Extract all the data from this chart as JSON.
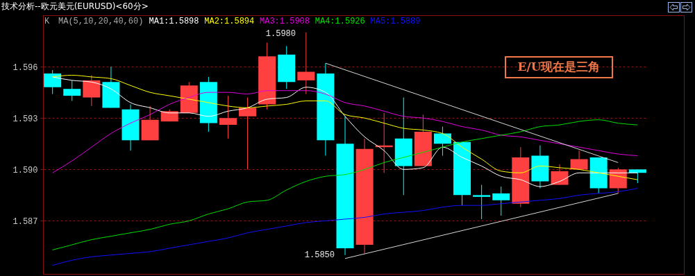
{
  "chart_data": {
    "type": "candlestick",
    "title": "技术分析--欧元美元(EURUSD)<60分>",
    "categories": [
      null,
      null,
      null,
      null,
      null,
      null,
      null,
      null,
      null,
      null,
      null,
      null,
      null,
      null,
      null,
      null,
      null,
      null,
      null,
      null,
      null,
      null,
      null,
      null,
      null,
      null,
      null,
      null,
      null,
      null,
      null
    ],
    "ohlc": [
      [
        1.5956,
        1.5958,
        1.5944,
        1.5948
      ],
      [
        1.5947,
        1.5952,
        1.594,
        1.5943
      ],
      [
        1.5942,
        1.5955,
        1.5937,
        1.5952
      ],
      [
        1.5951,
        1.596,
        1.5936,
        1.5936
      ],
      [
        1.5935,
        1.5938,
        1.5911,
        1.5917
      ],
      [
        1.5917,
        1.5937,
        1.5917,
        1.5929
      ],
      [
        1.5928,
        1.5935,
        1.5928,
        1.5934
      ],
      [
        1.5933,
        1.5951,
        1.5933,
        1.5949
      ],
      [
        1.5951,
        1.5954,
        1.5922,
        1.5927
      ],
      [
        1.5926,
        1.5943,
        1.5918,
        1.593
      ],
      [
        1.5931,
        1.5942,
        1.59,
        1.5936
      ],
      [
        1.5938,
        1.5974,
        1.5935,
        1.5966
      ],
      [
        1.5967,
        1.5972,
        1.5947,
        1.5951
      ],
      [
        1.5952,
        1.598,
        1.5944,
        1.5957
      ],
      [
        1.5956,
        1.5962,
        1.5908,
        1.5917
      ],
      [
        1.5915,
        1.5931,
        1.585,
        1.5854
      ],
      [
        1.5856,
        1.5918,
        1.5851,
        1.5912
      ],
      [
        1.5913,
        1.5933,
        1.5898,
        1.5914
      ],
      [
        1.5918,
        1.5942,
        1.5885,
        1.5902
      ],
      [
        1.5902,
        1.5932,
        1.5902,
        1.5922
      ],
      [
        1.5921,
        1.5925,
        1.5908,
        1.5915
      ],
      [
        1.5916,
        1.5916,
        1.5879,
        1.5885
      ],
      [
        1.5885,
        1.5891,
        1.5871,
        1.5884
      ],
      [
        1.5886,
        1.589,
        1.5873,
        1.5882
      ],
      [
        1.588,
        1.5913,
        1.5878,
        1.5907
      ],
      [
        1.5908,
        1.5914,
        1.5889,
        1.5893
      ],
      [
        1.5891,
        1.5903,
        1.5891,
        1.5899
      ],
      [
        1.59,
        1.5911,
        1.59,
        1.5906
      ],
      [
        1.5907,
        1.5907,
        1.5886,
        1.5889
      ],
      [
        1.5889,
        1.5901,
        1.5886,
        1.59
      ],
      [
        1.59,
        1.59,
        1.5892,
        1.5898
      ]
    ],
    "colors": [
      "#00ffff",
      "#00ffff",
      "#ff4040",
      "#00ffff",
      "#00ffff",
      "#ff4040",
      "#ff4040",
      "#ff4040",
      "#00ffff",
      "#ff4040",
      "#ff4040",
      "#ff4040",
      "#00ffff",
      "#ff4040",
      "#00ffff",
      "#00ffff",
      "#ff4040",
      "#ff4040",
      "#00ffff",
      "#ff4040",
      "#00ffff",
      "#00ffff",
      "#00ffff",
      "#00ffff",
      "#ff4040",
      "#00ffff",
      "#ff4040",
      "#ff4040",
      "#00ffff",
      "#ff4040",
      "#00ffff"
    ],
    "series": [
      {
        "name": "MA1:1.5898",
        "type": "line",
        "color": "#ffffff",
        "values": [
          1.5954,
          1.5952,
          1.5951,
          1.5947,
          1.5939,
          1.5936,
          1.5933,
          1.5933,
          1.5931,
          1.5934,
          1.5936,
          1.5941,
          1.5942,
          1.5948,
          1.5945,
          1.5931,
          1.5919,
          1.5911,
          1.59,
          1.5901,
          1.5913,
          1.5907,
          1.5902,
          1.5896,
          1.5894,
          1.589,
          1.5893,
          1.5898,
          1.5898,
          1.5898,
          1.5898
        ]
      },
      {
        "name": "MA2:1.5894",
        "type": "line",
        "color": "#ffff00",
        "values": [
          1.5954,
          1.5955,
          1.5954,
          1.5953,
          1.5949,
          1.5945,
          1.5943,
          1.5941,
          1.5939,
          1.5937,
          1.5936,
          1.5937,
          1.5938,
          1.594,
          1.594,
          1.5932,
          1.593,
          1.5927,
          1.5924,
          1.5923,
          1.5921,
          1.5913,
          1.5906,
          1.5899,
          1.5898,
          1.5902,
          1.5901,
          1.59,
          1.5898,
          1.5896,
          1.5894
        ]
      },
      {
        "name": "MA3:1.5908",
        "type": "line",
        "color": "#e000e0",
        "values": [
          1.5898,
          1.5905,
          1.5913,
          1.5921,
          1.5927,
          1.5932,
          1.5938,
          1.5942,
          1.5945,
          1.5945,
          1.5944,
          1.5946,
          1.5946,
          1.5946,
          1.5944,
          1.5939,
          1.5937,
          1.5934,
          1.5931,
          1.593,
          1.5928,
          1.5925,
          1.5923,
          1.592,
          1.5919,
          1.5917,
          1.5915,
          1.5913,
          1.5911,
          1.5909,
          1.5908
        ]
      },
      {
        "name": "MA4:1.5926",
        "type": "line",
        "color": "#00e000",
        "values": [
          1.5853,
          1.5856,
          1.5859,
          1.5861,
          1.5863,
          1.5865,
          1.5868,
          1.587,
          1.5874,
          1.5877,
          1.5881,
          1.5882,
          1.5888,
          1.5893,
          1.5896,
          1.5897,
          1.59,
          1.5904,
          1.5907,
          1.591,
          1.5913,
          1.5916,
          1.5918,
          1.592,
          1.5922,
          1.5925,
          1.5926,
          1.5928,
          1.5929,
          1.5927,
          1.5926
        ]
      },
      {
        "name": "MA5:1.5889",
        "type": "line",
        "color": "#1010ff",
        "values": [
          1.5844,
          1.5847,
          1.5849,
          1.585,
          1.5851,
          1.5852,
          1.5854,
          1.5856,
          1.5858,
          1.586,
          1.5863,
          1.5865,
          1.5867,
          1.5869,
          1.587,
          1.5871,
          1.5872,
          1.5874,
          1.5875,
          1.5876,
          1.5878,
          1.5879,
          1.5879,
          1.588,
          1.5881,
          1.5882,
          1.5883,
          1.5885,
          1.5886,
          1.5887,
          1.5889
        ]
      },
      {
        "type": "line",
        "color": "#d8d8d8",
        "values": [
          null,
          null,
          null,
          null,
          null,
          null,
          null,
          null,
          null,
          null,
          null,
          null,
          null,
          null,
          1.5962,
          null,
          null,
          null,
          null,
          null,
          null,
          null,
          null,
          null,
          null,
          null,
          null,
          null,
          null,
          1.5904,
          null
        ]
      },
      {
        "type": "line",
        "color": "#d8d8d8",
        "values": [
          null,
          null,
          null,
          null,
          null,
          null,
          null,
          null,
          null,
          null,
          null,
          null,
          null,
          null,
          null,
          1.5848,
          null,
          null,
          null,
          null,
          null,
          null,
          null,
          null,
          null,
          null,
          null,
          null,
          null,
          1.5886,
          null
        ]
      }
    ],
    "ylim": [
      1.5839,
      1.599
    ],
    "yticks": [
      1.587,
      {
        "value": 1.59,
        "label": "1.590"
      },
      1.593,
      1.596
    ],
    "grid": "y",
    "tick_labels": "y",
    "annotations": [
      "K",
      "MA(5,10,20,40,60)",
      "E/U现在是三角",
      "1.5980",
      "1.5850"
    ]
  }
}
